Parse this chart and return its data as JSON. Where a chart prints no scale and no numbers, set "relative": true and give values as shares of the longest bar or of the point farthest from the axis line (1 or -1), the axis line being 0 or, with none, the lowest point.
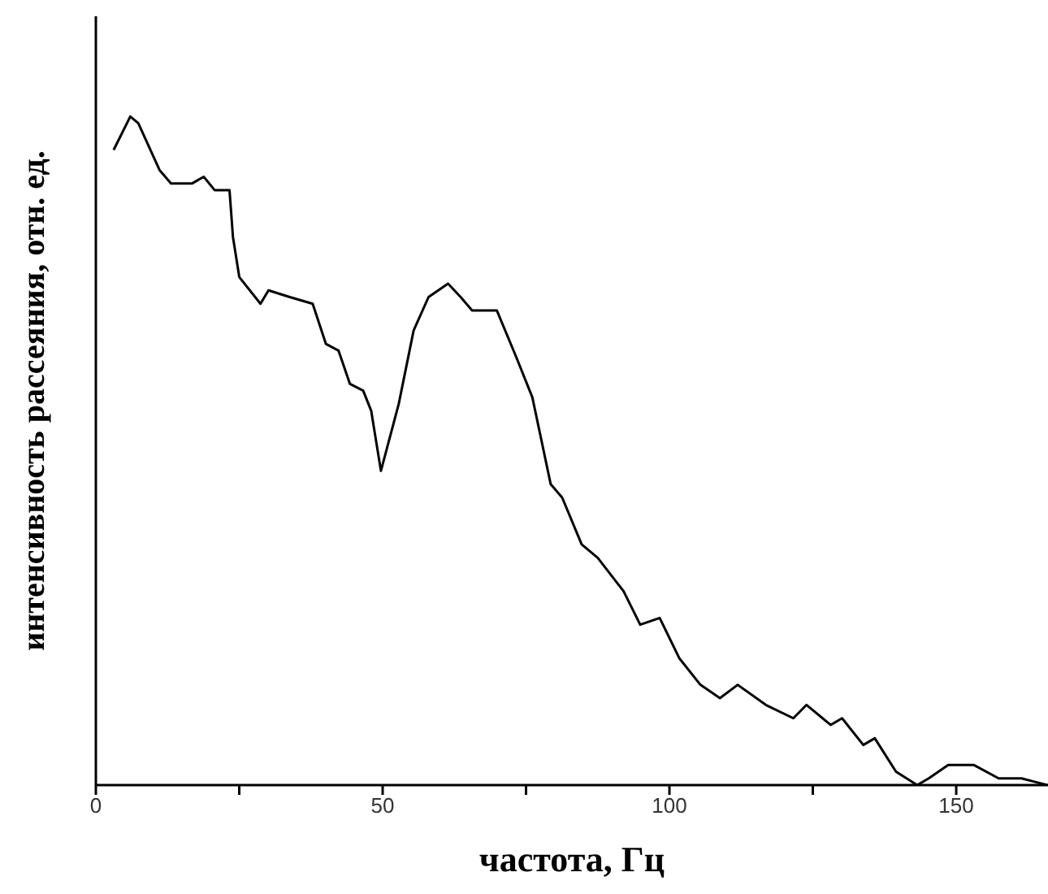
{
  "chart_data": {
    "type": "line",
    "relative": true,
    "xlabel": "частота, Гц",
    "ylabel": "интенсивность рассеяния, отн. ед.",
    "xlim": [
      0,
      166
    ],
    "xticks": [
      0,
      {
        "value": 25,
        "label": null
      },
      50,
      {
        "value": 75,
        "label": null
      },
      100,
      {
        "value": 125,
        "label": null
      },
      150
    ],
    "grid": false,
    "legend": false,
    "marker": "none",
    "line_style": "solid",
    "series": [
      {
        "color": "#000000",
        "x": [
          3.1,
          6,
          7.4,
          11.1,
          13.1,
          16.8,
          18.8,
          20.7,
          23.3,
          23.9,
          25,
          28.7,
          30.1,
          33.8,
          37.8,
          40.1,
          42.3,
          44.3,
          46.6,
          48,
          49.7,
          52.8,
          55.4,
          58,
          61.4,
          63.6,
          65.6,
          69.9,
          73.3,
          76.1,
          79.3,
          81.3,
          84.7,
          87.5,
          92,
          94.9,
          98.3,
          101.7,
          105.4,
          108.8,
          111.9,
          116.8,
          121.6,
          123.9,
          128.1,
          130.1,
          133.8,
          135.8,
          139.5,
          143.2,
          145.2,
          148.6,
          153.1,
          157.4,
          161.4,
          165.9
        ],
        "values": [
          0.95,
          1,
          0.99,
          0.92,
          0.9,
          0.9,
          0.91,
          0.89,
          0.89,
          0.82,
          0.76,
          0.72,
          0.74,
          0.73,
          0.72,
          0.66,
          0.65,
          0.6,
          0.59,
          0.56,
          0.47,
          0.57,
          0.68,
          0.73,
          0.75,
          0.73,
          0.71,
          0.71,
          0.64,
          0.58,
          0.45,
          0.43,
          0.36,
          0.34,
          0.29,
          0.24,
          0.25,
          0.19,
          0.15,
          0.13,
          0.15,
          0.12,
          0.1,
          0.12,
          0.09,
          0.1,
          0.06,
          0.07,
          0.02,
          0,
          0.01,
          0.03,
          0.03,
          0.01,
          0.01,
          0
        ]
      }
    ]
  }
}
